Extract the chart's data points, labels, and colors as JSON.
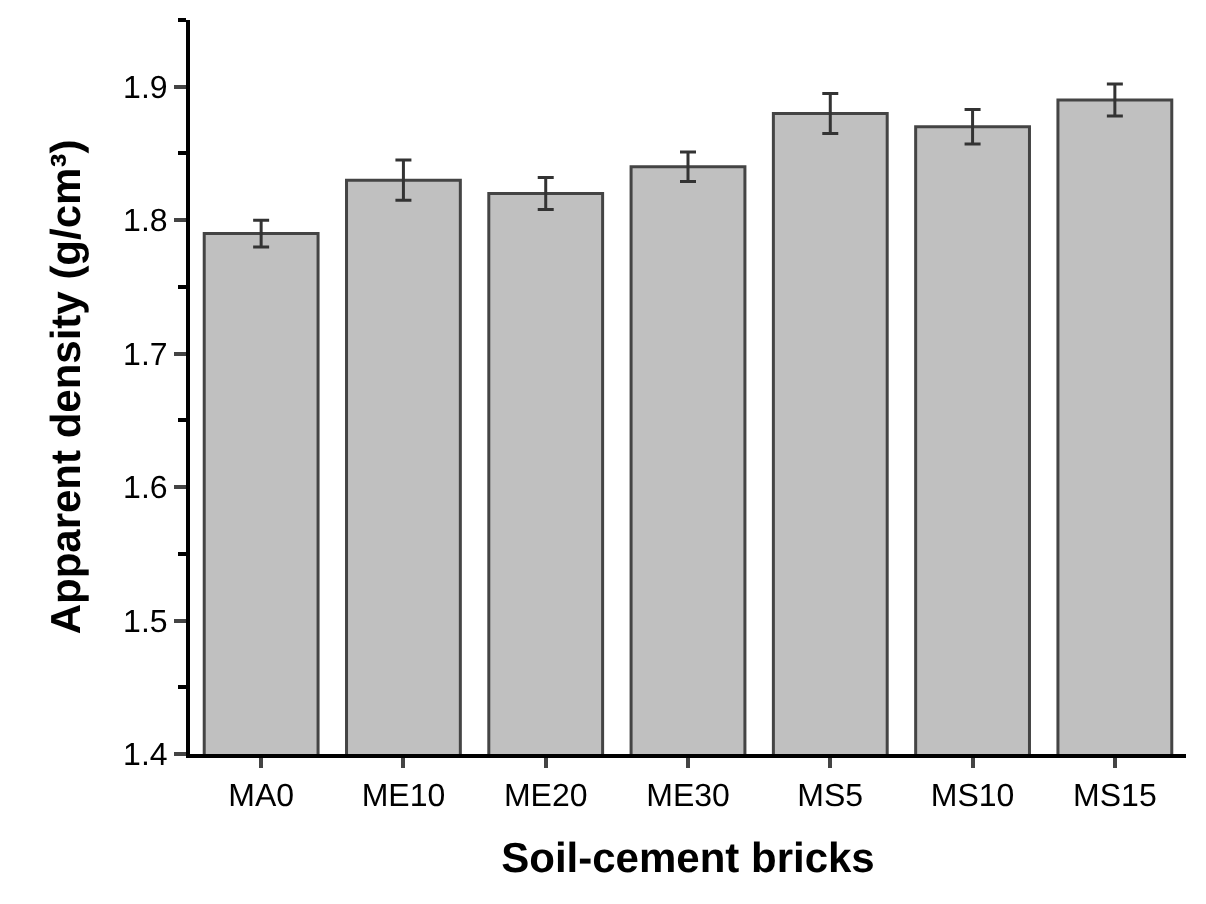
{
  "chart_data": {
    "type": "bar",
    "xlabel": "Soil-cement bricks",
    "ylabel": "Apparent density (g/cm³)",
    "categories": [
      "MA0",
      "ME10",
      "ME20",
      "ME30",
      "MS5",
      "MS10",
      "MS15"
    ],
    "values": [
      1.79,
      1.83,
      1.82,
      1.84,
      1.88,
      1.87,
      1.89
    ],
    "errors": [
      0.01,
      0.015,
      0.012,
      0.011,
      0.015,
      0.013,
      0.012
    ],
    "color": "#c0c0c0",
    "ylim": [
      1.4,
      1.95
    ],
    "yticks": [
      1.4,
      {
        "value": 1.45,
        "label": null
      },
      1.5,
      {
        "value": 1.55,
        "label": null
      },
      1.6,
      {
        "value": 1.65,
        "label": null
      },
      1.7,
      {
        "value": 1.75,
        "label": null
      },
      1.8,
      {
        "value": 1.85,
        "label": null
      },
      1.9,
      {
        "value": 1.95,
        "label": null
      }
    ]
  }
}
